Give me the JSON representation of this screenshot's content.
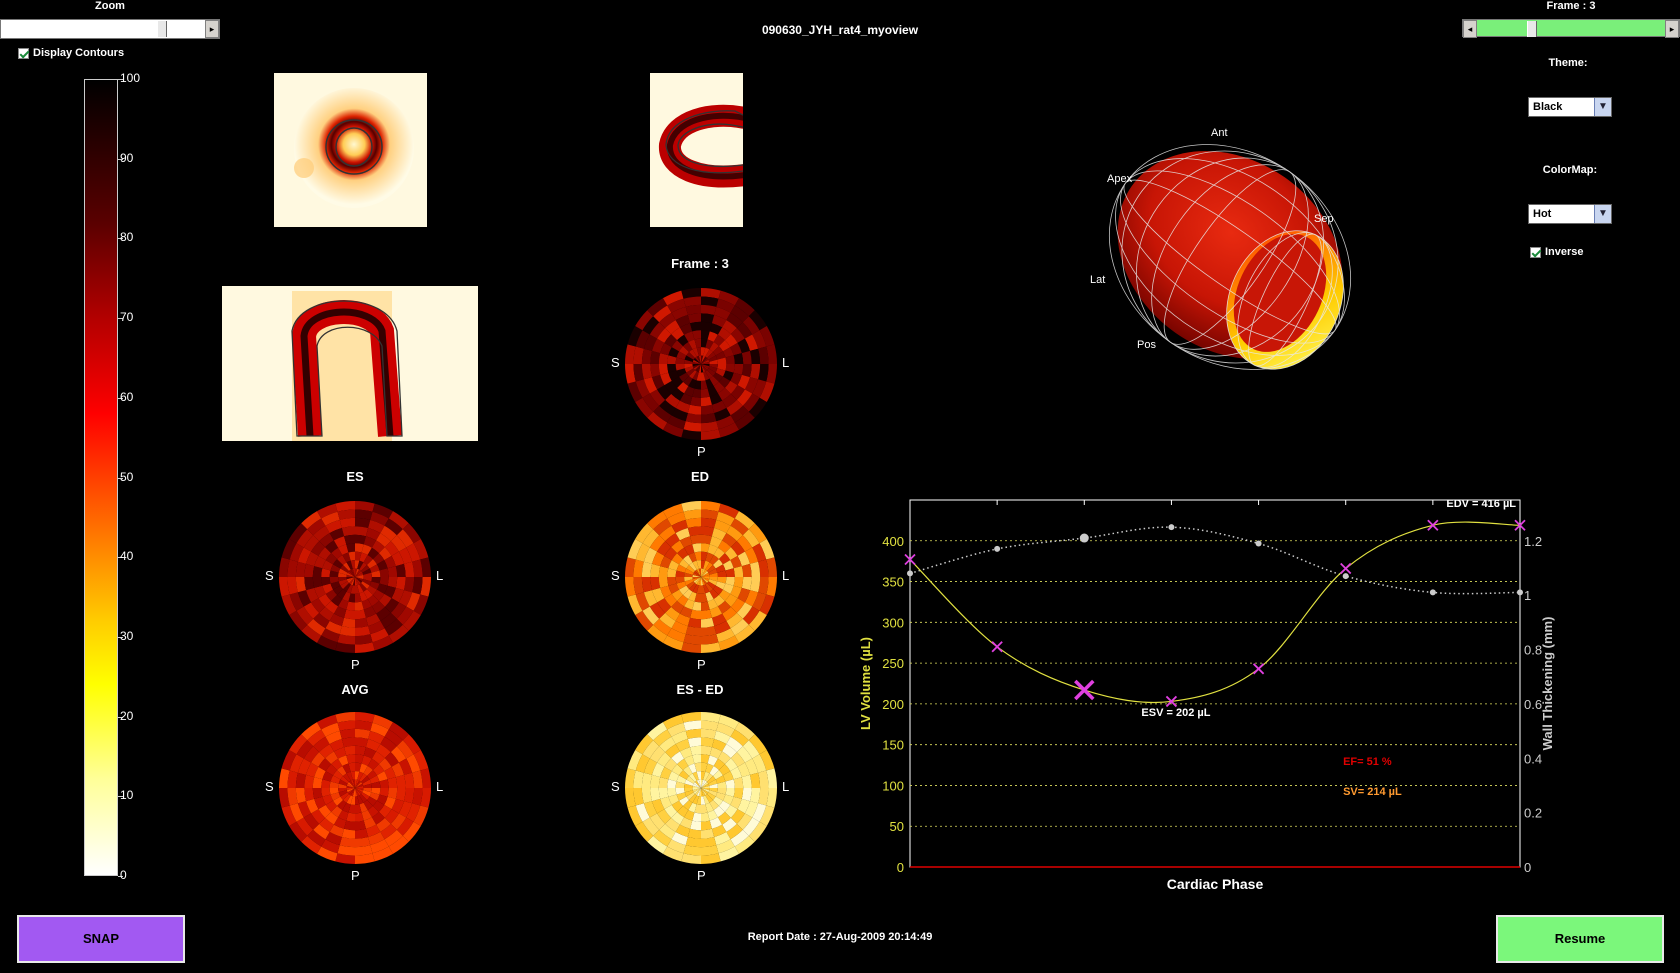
{
  "header": {
    "zoom_label": "Zoom",
    "title": "090630_JYH_rat4_myoview",
    "frame_label": "Frame : 3",
    "display_contours_label": "Display Contours",
    "display_contours_checked": true
  },
  "colorbar": {
    "ticks": [
      "100",
      "90",
      "80",
      "70",
      "60",
      "50",
      "40",
      "30",
      "20",
      "10",
      "0"
    ]
  },
  "controls": {
    "theme_label": "Theme:",
    "theme_value": "Black",
    "colormap_label": "ColorMap:",
    "colormap_value": "Hot",
    "inverse_label": "Inverse",
    "inverse_checked": true
  },
  "polar_maps": {
    "frame_title": "Frame : 3",
    "es_title": "ES",
    "ed_title": "ED",
    "avg_title": "AVG",
    "diff_title": "ES - ED",
    "s": "S",
    "l": "L",
    "p": "P"
  },
  "view3d": {
    "ant": "Ant",
    "apex": "Apex",
    "sep": "Sep",
    "lat": "Lat",
    "pos": "Pos"
  },
  "chart_data": {
    "type": "line",
    "xlabel": "Cardiac Phase",
    "ylabel": "LV Volume (µL)",
    "y2label": "Wall Thickening (mm)",
    "ylim": [
      0,
      450
    ],
    "y2lim": [
      0,
      1.35
    ],
    "yticks": [
      0,
      50,
      100,
      150,
      200,
      250,
      300,
      350,
      400
    ],
    "y2ticks": [
      0,
      0.2,
      0.4,
      0.6,
      0.8,
      1,
      1.2
    ],
    "x": [
      1,
      2,
      3,
      4,
      5,
      6,
      7,
      8
    ],
    "series": [
      {
        "role": "volume",
        "color": "#e0e040",
        "values": [
          377,
          270,
          217,
          203,
          243,
          366,
          419,
          419
        ]
      },
      {
        "role": "thickening",
        "color": "#cccccc",
        "values": [
          1.08,
          1.17,
          1.21,
          1.25,
          1.19,
          1.07,
          1.01,
          1.01
        ]
      }
    ],
    "current_frame": 3,
    "annotations": {
      "edv": "EDV = 416 µL",
      "esv": "ESV = 202 µL",
      "ef": "EF= 51 %",
      "sv": "SV= 214 µL"
    }
  },
  "footer": {
    "snap_label": "SNAP",
    "report_date": "Report Date : 27-Aug-2009 20:14:49",
    "resume_label": "Resume"
  }
}
